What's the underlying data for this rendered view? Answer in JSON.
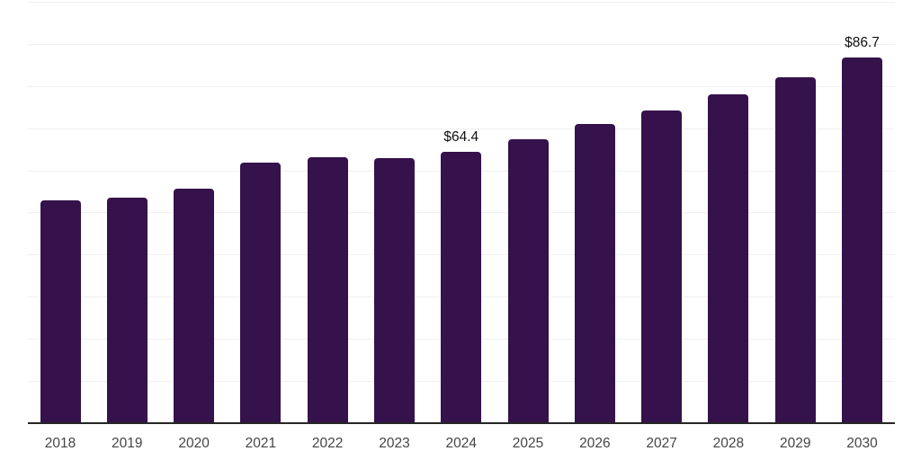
{
  "chart_data": {
    "type": "bar",
    "title": "",
    "xlabel": "",
    "ylabel": "",
    "categories": [
      "2018",
      "2019",
      "2020",
      "2021",
      "2022",
      "2023",
      "2024",
      "2025",
      "2026",
      "2027",
      "2028",
      "2029",
      "2030"
    ],
    "values": [
      52.9,
      53.6,
      55.7,
      61.9,
      63.2,
      62.9,
      64.4,
      67.4,
      71.0,
      74.2,
      78.0,
      82.2,
      86.7
    ],
    "data_labels": {
      "2024": "$64.4",
      "2030": "$86.7"
    },
    "ylim": [
      0,
      100
    ],
    "gridline_step": 10,
    "grid": "horizontal",
    "y_tick_labels_visible": false,
    "legend": "none",
    "colors": {
      "bar": "#35124b",
      "gridline": "#f0f0f0",
      "axis_line": "#262626",
      "tick_label": "#454545",
      "data_label": "#111111",
      "background": "#ffffff"
    }
  }
}
